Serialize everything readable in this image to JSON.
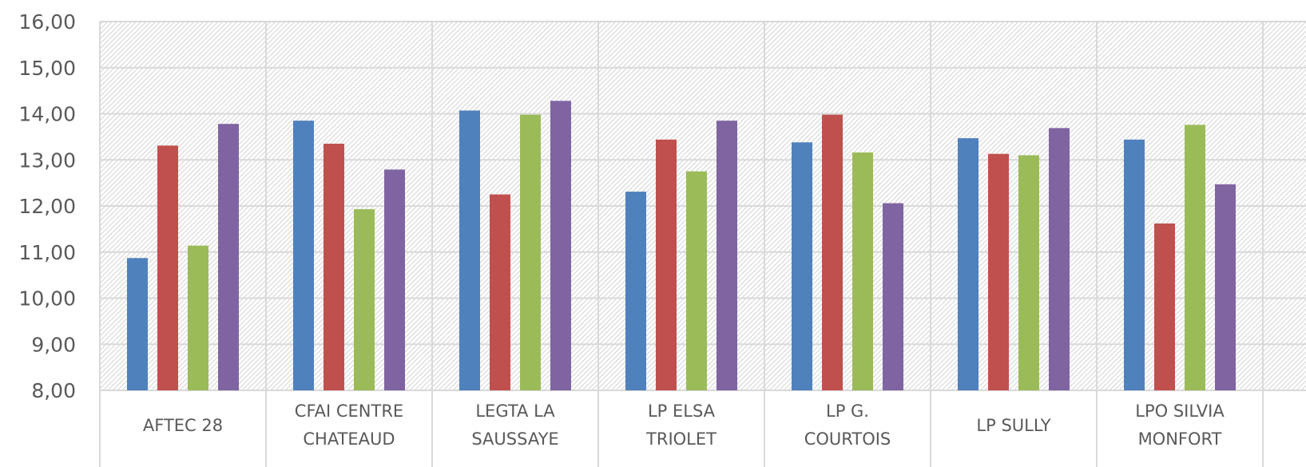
{
  "chart_data": {
    "type": "bar",
    "categories": [
      [
        "AFTEC 28"
      ],
      [
        "CFAI CENTRE",
        "CHATEAUD"
      ],
      [
        "LEGTA LA",
        "SAUSSAYE"
      ],
      [
        "LP ELSA",
        "TRIOLET"
      ],
      [
        "LP G.",
        "COURTOIS"
      ],
      [
        "LP SULLY"
      ],
      [
        "LPO SILVIA",
        "MONFORT"
      ]
    ],
    "series": [
      {
        "color": "#4F81BD",
        "values": [
          10.87,
          13.85,
          14.07,
          12.31,
          13.38,
          13.47,
          13.44
        ]
      },
      {
        "color": "#C0504D",
        "values": [
          13.31,
          13.35,
          12.25,
          13.44,
          13.98,
          13.13,
          11.62
        ]
      },
      {
        "color": "#9BBB59",
        "values": [
          11.14,
          11.93,
          13.98,
          12.75,
          13.16,
          13.1,
          13.76
        ]
      },
      {
        "color": "#8064A2",
        "values": [
          13.78,
          12.79,
          14.28,
          13.85,
          12.06,
          13.69,
          12.47
        ]
      }
    ],
    "yticks": [
      "8,00",
      "9,00",
      "10,00",
      "11,00",
      "12,00",
      "13,00",
      "14,00",
      "15,00",
      "16,00"
    ],
    "ylim": [
      8,
      16
    ],
    "grid": true,
    "title": "",
    "xlabel": "",
    "ylabel": ""
  }
}
